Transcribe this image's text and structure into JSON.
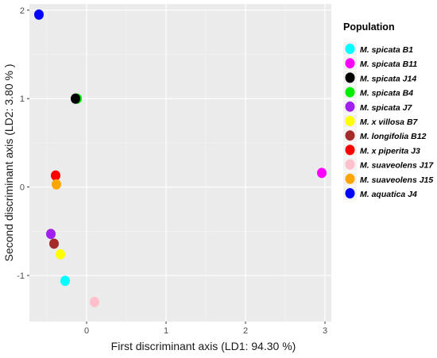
{
  "chart_data": {
    "type": "scatter",
    "xlabel": "First discriminant axis (LD1: 94.30 %)",
    "ylabel": "Second discriminant axis (LD2: 3.80 % )",
    "xlim": [
      -0.72,
      3.08
    ],
    "ylim": [
      -1.52,
      2.07
    ],
    "xticks": [
      0,
      1,
      2,
      3
    ],
    "yticks": [
      -1,
      0,
      1,
      2
    ],
    "grid": true,
    "background": "#ebebeb",
    "legend": {
      "title": "Population",
      "placement": "right",
      "entries": [
        {
          "label": "M. spicata B1",
          "color": "#00ffff"
        },
        {
          "label": "M. spicata B11",
          "color": "#ff00ff"
        },
        {
          "label": "M. spicata J14",
          "color": "#000000"
        },
        {
          "label": "M. spicata B4",
          "color": "#00ee00"
        },
        {
          "label": "M. spicata J7",
          "color": "#a020f0"
        },
        {
          "label": "M. x villosa B7",
          "color": "#ffff00"
        },
        {
          "label": "M. longifolia B12",
          "color": "#a52a2a"
        },
        {
          "label": "M. x piperita J3",
          "color": "#ff0000"
        },
        {
          "label": "M. suaveolens J17",
          "color": "#ffc0cb"
        },
        {
          "label": "M. suaveolens J15",
          "color": "#ffa500"
        },
        {
          "label": "M. aquatica J4",
          "color": "#0000ff"
        }
      ]
    },
    "series": [
      {
        "name": "M. spicata B1",
        "color": "#00ffff",
        "points": [
          [
            -0.27,
            -1.06
          ]
        ]
      },
      {
        "name": "M. spicata B11",
        "color": "#ff00ff",
        "points": [
          [
            2.96,
            0.16
          ]
        ]
      },
      {
        "name": "M. spicata B4",
        "color": "#00ee00",
        "points": [
          [
            -0.12,
            1.0
          ]
        ]
      },
      {
        "name": "M. spicata J14",
        "color": "#000000",
        "points": [
          [
            -0.14,
            1.0
          ]
        ]
      },
      {
        "name": "M. spicata J7",
        "color": "#a020f0",
        "points": [
          [
            -0.45,
            -0.53
          ]
        ]
      },
      {
        "name": "M. x villosa B7",
        "color": "#ffff00",
        "points": [
          [
            -0.33,
            -0.76
          ]
        ]
      },
      {
        "name": "M. longifolia B12",
        "color": "#a52a2a",
        "points": [
          [
            -0.41,
            -0.64
          ]
        ]
      },
      {
        "name": "M. x piperita J3",
        "color": "#ff0000",
        "points": [
          [
            -0.39,
            0.13
          ]
        ]
      },
      {
        "name": "M. suaveolens J17",
        "color": "#ffc0cb",
        "points": [
          [
            0.1,
            -1.3
          ]
        ]
      },
      {
        "name": "M. suaveolens J15",
        "color": "#ffa500",
        "points": [
          [
            -0.38,
            0.03
          ]
        ]
      },
      {
        "name": "M. aquatica J4",
        "color": "#0000ff",
        "points": [
          [
            -0.6,
            1.95
          ]
        ]
      }
    ]
  }
}
